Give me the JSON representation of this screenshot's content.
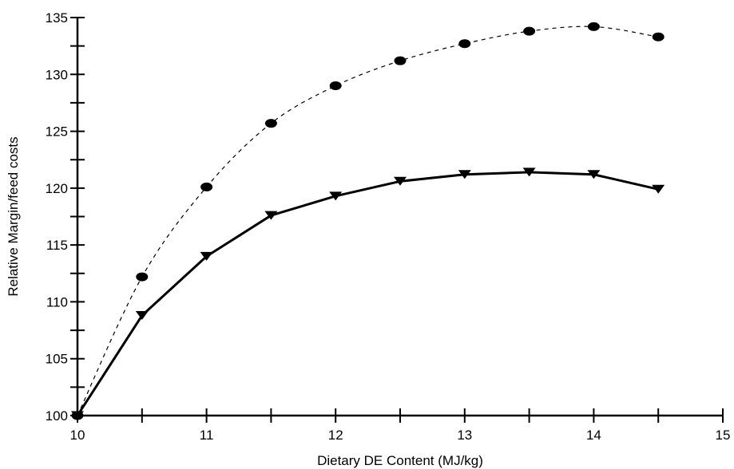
{
  "chart_data": {
    "type": "line",
    "title": "",
    "xlabel": "Dietary DE Content (MJ/kg)",
    "ylabel": "Relative Margin/feed costs",
    "xlim": [
      10,
      15
    ],
    "ylim": [
      100,
      135
    ],
    "x_ticks": [
      "10",
      "11",
      "12",
      "13",
      "14",
      "15"
    ],
    "y_ticks": [
      "100",
      "105",
      "110",
      "115",
      "120",
      "125",
      "130",
      "135"
    ],
    "grid": false,
    "legend": "none",
    "series": [
      {
        "marker": "circle",
        "line_style": "dashed",
        "color": "#000000",
        "x": [
          10,
          10.5,
          11,
          11.5,
          12,
          12.5,
          13,
          13.5,
          14,
          14.5
        ],
        "y": [
          100,
          112.2,
          120.1,
          125.7,
          129.0,
          131.2,
          132.7,
          133.8,
          134.2,
          133.3
        ]
      },
      {
        "marker": "triangle-down",
        "line_style": "solid",
        "color": "#000000",
        "x": [
          10,
          10.5,
          11,
          11.5,
          12,
          12.5,
          13,
          13.5,
          14,
          14.5
        ],
        "y": [
          100,
          108.8,
          114.0,
          117.6,
          119.3,
          120.6,
          121.2,
          121.4,
          121.2,
          119.9
        ]
      }
    ]
  }
}
